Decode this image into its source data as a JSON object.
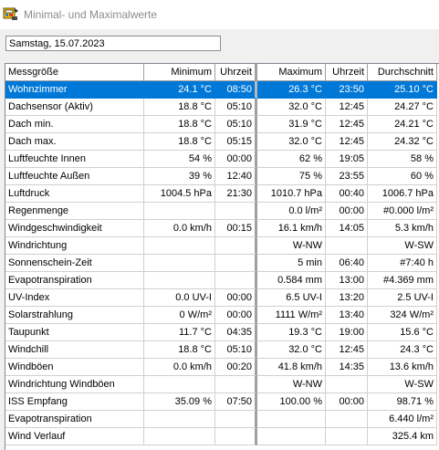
{
  "window": {
    "title": "Minimal- und Maximalwerte"
  },
  "date_field": {
    "value": "Samstag, 15.07.2023"
  },
  "table": {
    "headers": [
      "Messgröße",
      "Minimum",
      "Uhrzeit",
      "Maximum",
      "Uhrzeit",
      "Durchschnitt"
    ],
    "rows": [
      [
        "Wohnzimmer",
        "24.1 °C",
        "08:50",
        "26.3 °C",
        "23:50",
        "25.10 °C"
      ],
      [
        "Dachsensor (Aktiv)",
        "18.8 °C",
        "05:10",
        "32.0 °C",
        "12:45",
        "24.27 °C"
      ],
      [
        "Dach min.",
        "18.8 °C",
        "05:10",
        "31.9 °C",
        "12:45",
        "24.21 °C"
      ],
      [
        "Dach max.",
        "18.8 °C",
        "05:15",
        "32.0 °C",
        "12:45",
        "24.32 °C"
      ],
      [
        "Luftfeuchte Innen",
        "54 %",
        "00:00",
        "62 %",
        "19:05",
        "58 %"
      ],
      [
        "Luftfeuchte Außen",
        "39 %",
        "12:40",
        "75 %",
        "23:55",
        "60 %"
      ],
      [
        "Luftdruck",
        "1004.5 hPa",
        "21:30",
        "1010.7 hPa",
        "00:40",
        "1006.7 hPa"
      ],
      [
        "Regenmenge",
        "",
        "",
        "0.0 l/m²",
        "00:00",
        "#0.000 l/m²"
      ],
      [
        "Windgeschwindigkeit",
        "0.0 km/h",
        "00:15",
        "16.1 km/h",
        "14:05",
        "5.3 km/h"
      ],
      [
        "Windrichtung",
        "",
        "",
        "W-NW",
        "",
        "W-SW"
      ],
      [
        "Sonnenschein-Zeit",
        "",
        "",
        "5 min",
        "06:40",
        "#7:40 h"
      ],
      [
        "Evapotranspiration",
        "",
        "",
        "0.584 mm",
        "13:00",
        "#4.369 mm"
      ],
      [
        "UV-Index",
        "0.0 UV-I",
        "00:00",
        "6.5 UV-I",
        "13:20",
        "2.5 UV-I"
      ],
      [
        "Solarstrahlung",
        "0 W/m²",
        "00:00",
        "1111 W/m²",
        "13:40",
        "324 W/m²"
      ],
      [
        "Taupunkt",
        "11.7 °C",
        "04:35",
        "19.3 °C",
        "19:00",
        "15.6 °C"
      ],
      [
        "Windchill",
        "18.8 °C",
        "05:10",
        "32.0 °C",
        "12:45",
        "24.3 °C"
      ],
      [
        "Windböen",
        "0.0 km/h",
        "00:20",
        "41.8 km/h",
        "14:35",
        "13.6 km/h"
      ],
      [
        "Windrichtung Windböen",
        "",
        "",
        "W-NW",
        "",
        "W-SW"
      ],
      [
        "ISS Empfang",
        "35.09 %",
        "07:50",
        "100.00 %",
        "00:00",
        "98.71 %"
      ],
      [
        "Evapotranspiration",
        "",
        "",
        "",
        "",
        "6.440 l/m²"
      ],
      [
        "Wind Verlauf",
        "",
        "",
        "",
        "",
        "325.4 km"
      ]
    ],
    "selected_row": 0
  },
  "colors": {
    "selection": "#0078d7",
    "grid_line": "#d0d0d0",
    "title_text": "#8c8c8c"
  },
  "icons": {
    "app": "weather-station-icon"
  }
}
